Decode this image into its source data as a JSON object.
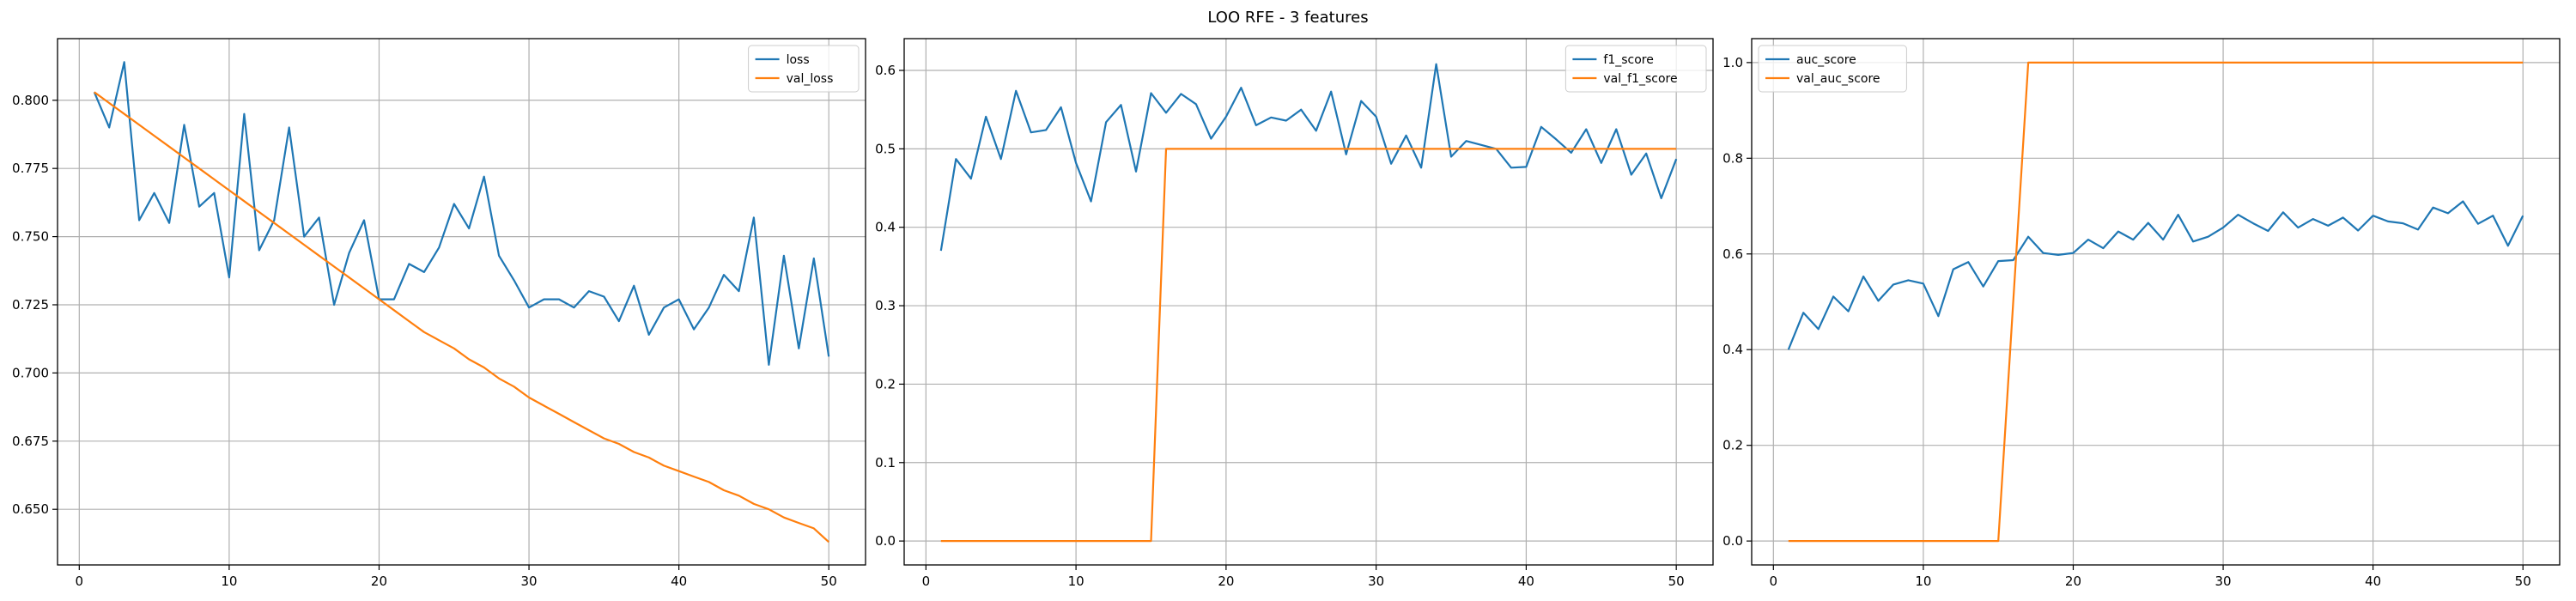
{
  "figure": {
    "title": "LOO RFE - 3 features"
  },
  "chart_data": [
    {
      "type": "line",
      "title": "",
      "xlabel": "",
      "ylabel": "",
      "xlim": [
        -1.45,
        52.45
      ],
      "ylim": [
        0.6296,
        0.8226
      ],
      "xticks": [
        0,
        10,
        20,
        30,
        40,
        50
      ],
      "xtick_labels": [
        "0",
        "10",
        "20",
        "30",
        "40",
        "50"
      ],
      "yticks": [
        0.65,
        0.675,
        0.7,
        0.725,
        0.75,
        0.775,
        0.8
      ],
      "ytick_labels": [
        "0.650",
        "0.675",
        "0.700",
        "0.725",
        "0.750",
        "0.775",
        "0.800"
      ],
      "grid": true,
      "legend_position": "top-right",
      "x": [
        1,
        2,
        3,
        4,
        5,
        6,
        7,
        8,
        9,
        10,
        11,
        12,
        13,
        14,
        15,
        16,
        17,
        18,
        19,
        20,
        21,
        22,
        23,
        24,
        25,
        26,
        27,
        28,
        29,
        30,
        31,
        32,
        33,
        34,
        35,
        36,
        37,
        38,
        39,
        40,
        41,
        42,
        43,
        44,
        45,
        46,
        47,
        48,
        49,
        50
      ],
      "series": [
        {
          "name": "loss",
          "color": "#1f77b4",
          "values": [
            0.803,
            0.79,
            0.814,
            0.756,
            0.766,
            0.755,
            0.791,
            0.761,
            0.766,
            0.735,
            0.795,
            0.745,
            0.756,
            0.79,
            0.75,
            0.757,
            0.725,
            0.744,
            0.756,
            0.727,
            0.727,
            0.74,
            0.737,
            0.746,
            0.762,
            0.753,
            0.772,
            0.743,
            0.734,
            0.724,
            0.727,
            0.727,
            0.724,
            0.73,
            0.728,
            0.719,
            0.732,
            0.714,
            0.724,
            0.727,
            0.716,
            0.724,
            0.736,
            0.73,
            0.757,
            0.703,
            0.743,
            0.709,
            0.742,
            0.706
          ]
        },
        {
          "name": "val_loss",
          "color": "#ff7f0e",
          "values": [
            0.803,
            0.799,
            0.795,
            0.791,
            0.787,
            0.783,
            0.779,
            0.775,
            0.771,
            0.767,
            0.763,
            0.759,
            0.755,
            0.751,
            0.747,
            0.743,
            0.739,
            0.735,
            0.731,
            0.727,
            0.723,
            0.719,
            0.715,
            0.712,
            0.709,
            0.705,
            0.702,
            0.698,
            0.695,
            0.691,
            0.688,
            0.685,
            0.682,
            0.679,
            0.676,
            0.674,
            0.671,
            0.669,
            0.666,
            0.664,
            0.662,
            0.66,
            0.657,
            0.655,
            0.652,
            0.65,
            0.647,
            0.645,
            0.643,
            0.638
          ]
        }
      ]
    },
    {
      "type": "line",
      "title": "",
      "xlabel": "",
      "ylabel": "",
      "xlim": [
        -1.45,
        52.45
      ],
      "ylim": [
        -0.0305,
        0.6405
      ],
      "xticks": [
        0,
        10,
        20,
        30,
        40,
        50
      ],
      "xtick_labels": [
        "0",
        "10",
        "20",
        "30",
        "40",
        "50"
      ],
      "yticks": [
        0.0,
        0.1,
        0.2,
        0.3,
        0.4,
        0.5,
        0.6
      ],
      "ytick_labels": [
        "0.0",
        "0.1",
        "0.2",
        "0.3",
        "0.4",
        "0.5",
        "0.6"
      ],
      "grid": true,
      "legend_position": "top-right",
      "x": [
        1,
        2,
        3,
        4,
        5,
        6,
        7,
        8,
        9,
        10,
        11,
        12,
        13,
        14,
        15,
        16,
        17,
        18,
        19,
        20,
        21,
        22,
        23,
        24,
        25,
        26,
        27,
        28,
        29,
        30,
        31,
        32,
        33,
        34,
        35,
        36,
        37,
        38,
        39,
        40,
        41,
        42,
        43,
        44,
        45,
        46,
        47,
        48,
        49,
        50
      ],
      "series": [
        {
          "name": "f1_score",
          "color": "#1f77b4",
          "values": [
            0.37,
            0.487,
            0.462,
            0.541,
            0.487,
            0.574,
            0.521,
            0.524,
            0.553,
            0.482,
            0.433,
            0.534,
            0.556,
            0.471,
            0.571,
            0.546,
            0.57,
            0.557,
            0.513,
            0.541,
            0.578,
            0.53,
            0.54,
            0.536,
            0.55,
            0.523,
            0.573,
            0.493,
            0.561,
            0.541,
            0.481,
            0.517,
            0.476,
            0.608,
            0.49,
            0.51,
            0.505,
            0.5,
            0.476,
            0.477,
            0.528,
            0.512,
            0.495,
            0.525,
            0.482,
            0.525,
            0.467,
            0.494,
            0.437,
            0.487
          ]
        },
        {
          "name": "val_f1_score",
          "color": "#ff7f0e",
          "values": [
            0,
            0,
            0,
            0,
            0,
            0,
            0,
            0,
            0,
            0,
            0,
            0,
            0,
            0,
            0,
            0.5,
            0.5,
            0.5,
            0.5,
            0.5,
            0.5,
            0.5,
            0.5,
            0.5,
            0.5,
            0.5,
            0.5,
            0.5,
            0.5,
            0.5,
            0.5,
            0.5,
            0.5,
            0.5,
            0.5,
            0.5,
            0.5,
            0.5,
            0.5,
            0.5,
            0.5,
            0.5,
            0.5,
            0.5,
            0.5,
            0.5,
            0.5,
            0.5,
            0.5,
            0.5
          ]
        }
      ]
    },
    {
      "type": "line",
      "title": "",
      "xlabel": "",
      "ylabel": "",
      "xlim": [
        -1.45,
        52.45
      ],
      "ylim": [
        -0.05,
        1.05
      ],
      "xticks": [
        0,
        10,
        20,
        30,
        40,
        50
      ],
      "xtick_labels": [
        "0",
        "10",
        "20",
        "30",
        "40",
        "50"
      ],
      "yticks": [
        0.0,
        0.2,
        0.4,
        0.6,
        0.8,
        1.0
      ],
      "ytick_labels": [
        "0.0",
        "0.2",
        "0.4",
        "0.6",
        "0.8",
        "1.0"
      ],
      "grid": true,
      "legend_position": "top-left",
      "x": [
        1,
        2,
        3,
        4,
        5,
        6,
        7,
        8,
        9,
        10,
        11,
        12,
        13,
        14,
        15,
        16,
        17,
        18,
        19,
        20,
        21,
        22,
        23,
        24,
        25,
        26,
        27,
        28,
        29,
        30,
        31,
        32,
        33,
        34,
        35,
        36,
        37,
        38,
        39,
        40,
        41,
        42,
        43,
        44,
        45,
        46,
        47,
        48,
        49,
        50
      ],
      "series": [
        {
          "name": "auc_score",
          "color": "#1f77b4",
          "values": [
            0.4,
            0.477,
            0.443,
            0.511,
            0.48,
            0.553,
            0.502,
            0.536,
            0.545,
            0.538,
            0.47,
            0.568,
            0.583,
            0.532,
            0.585,
            0.587,
            0.636,
            0.602,
            0.598,
            0.602,
            0.63,
            0.612,
            0.647,
            0.63,
            0.665,
            0.63,
            0.682,
            0.626,
            0.636,
            0.655,
            0.682,
            0.664,
            0.648,
            0.687,
            0.655,
            0.673,
            0.659,
            0.676,
            0.649,
            0.68,
            0.668,
            0.664,
            0.651,
            0.697,
            0.685,
            0.71,
            0.663,
            0.68,
            0.617,
            0.68
          ]
        },
        {
          "name": "val_auc_score",
          "color": "#ff7f0e",
          "values": [
            0,
            0,
            0,
            0,
            0,
            0,
            0,
            0,
            0,
            0,
            0,
            0,
            0,
            0,
            0,
            0.5,
            1,
            1,
            1,
            1,
            1,
            1,
            1,
            1,
            1,
            1,
            1,
            1,
            1,
            1,
            1,
            1,
            1,
            1,
            1,
            1,
            1,
            1,
            1,
            1,
            1,
            1,
            1,
            1,
            1,
            1,
            1,
            1,
            1,
            1
          ]
        }
      ]
    }
  ]
}
